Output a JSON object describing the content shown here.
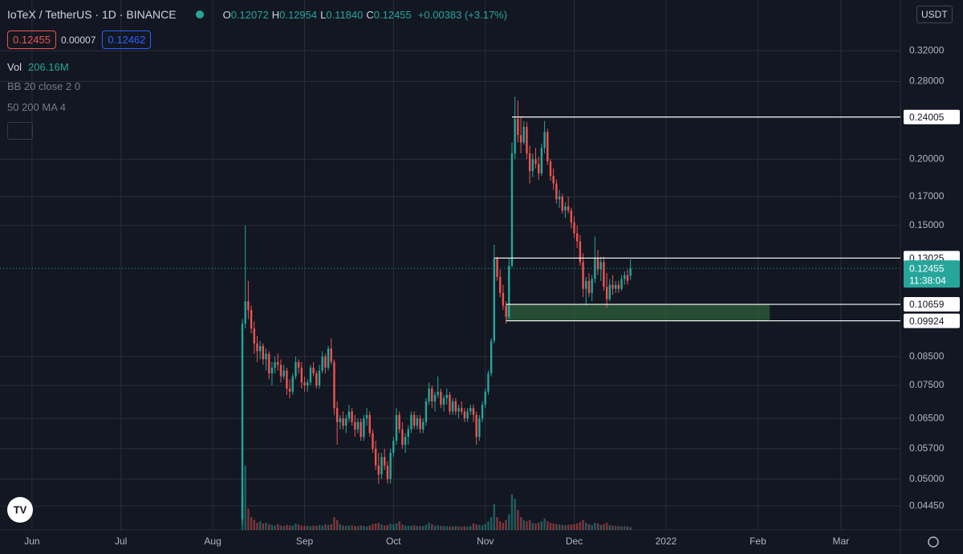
{
  "header": {
    "symbol": "IoTeX / TetherUS · 1D · BINANCE",
    "ohlc_prefixes": [
      "O",
      "H",
      "L",
      "C"
    ],
    "ohlc_values": [
      "0.12072",
      "0.12954",
      "0.11840",
      "0.12455"
    ],
    "change": "+0.00383 (+3.17%)",
    "sell": "0.12455",
    "spread": "0.00007",
    "buy": "0.12462",
    "volume_label": "Vol",
    "volume_value": "206.16M",
    "indicators": [
      "BB 20 close 2 0",
      "50 200 MA 4"
    ],
    "currency": "USDT",
    "countdown": "11:38:04"
  },
  "chart_data": {
    "type": "candlestick",
    "log_scale": true,
    "grid": true,
    "up_color": "#26a69a",
    "down_color": "#ef5350",
    "zone_color": "#2e5f3a",
    "xlim": [
      141.2,
      445.1
    ],
    "ylim": [
      0.0401,
      0.3986
    ],
    "xticks": [
      {
        "value": 152,
        "label": "Jun"
      },
      {
        "value": 182,
        "label": "Jul"
      },
      {
        "value": 213,
        "label": "Aug"
      },
      {
        "value": 244,
        "label": "Sep"
      },
      {
        "value": 274,
        "label": "Oct"
      },
      {
        "value": 305,
        "label": "Nov"
      },
      {
        "value": 335,
        "label": "Dec"
      },
      {
        "value": 366,
        "label": "2022"
      },
      {
        "value": 397,
        "label": "Feb"
      },
      {
        "value": 425,
        "label": "Mar"
      }
    ],
    "yticks": [
      {
        "value": 0.32,
        "label": "0.32000"
      },
      {
        "value": 0.28,
        "label": "0.28000"
      },
      {
        "value": 0.2,
        "label": "0.20000"
      },
      {
        "value": 0.17,
        "label": "0.17000"
      },
      {
        "value": 0.15,
        "label": "0.15000"
      },
      {
        "value": 0.085,
        "label": "0.08500"
      },
      {
        "value": 0.075,
        "label": "0.07500"
      },
      {
        "value": 0.065,
        "label": "0.06500"
      },
      {
        "value": 0.057,
        "label": "0.05700"
      },
      {
        "value": 0.05,
        "label": "0.05000"
      },
      {
        "value": 0.0445,
        "label": "0.04450"
      }
    ],
    "levels": [
      {
        "value": 0.24005,
        "from": 314
      },
      {
        "value": 0.13025,
        "from": 308
      },
      {
        "value": 0.10659,
        "from": 312
      },
      {
        "value": 0.09924,
        "from": 312
      }
    ],
    "zone": {
      "x0": 312,
      "x1": 401,
      "y0": 0.09924,
      "y1": 0.10659
    },
    "last_price": 0.12455,
    "x": [
      223,
      224,
      225,
      226,
      227,
      228,
      229,
      230,
      231,
      232,
      233,
      234,
      235,
      236,
      237,
      238,
      239,
      240,
      241,
      242,
      243,
      244,
      245,
      246,
      247,
      248,
      249,
      250,
      251,
      252,
      253,
      254,
      255,
      256,
      257,
      258,
      259,
      260,
      261,
      262,
      263,
      264,
      265,
      266,
      267,
      268,
      269,
      270,
      271,
      272,
      273,
      274,
      275,
      276,
      277,
      278,
      279,
      280,
      281,
      282,
      283,
      284,
      285,
      286,
      287,
      288,
      289,
      290,
      291,
      292,
      293,
      294,
      295,
      296,
      297,
      298,
      299,
      300,
      301,
      302,
      303,
      304,
      305,
      306,
      307,
      308,
      309,
      310,
      311,
      312,
      313,
      314,
      315,
      316,
      317,
      318,
      319,
      320,
      321,
      322,
      323,
      324,
      325,
      326,
      327,
      328,
      329,
      330,
      331,
      332,
      333,
      334,
      335,
      336,
      337,
      338,
      339,
      340,
      341,
      342,
      343,
      344,
      345,
      346,
      347,
      348,
      349,
      350,
      351,
      352,
      353,
      354
    ],
    "ohlc": [
      [
        0.042,
        0.1,
        0.041,
        0.098
      ],
      [
        0.098,
        0.15,
        0.096,
        0.108
      ],
      [
        0.108,
        0.118,
        0.1,
        0.104
      ],
      [
        0.104,
        0.106,
        0.094,
        0.096
      ],
      [
        0.096,
        0.099,
        0.086,
        0.09
      ],
      [
        0.09,
        0.093,
        0.083,
        0.087
      ],
      [
        0.087,
        0.091,
        0.084,
        0.089
      ],
      [
        0.089,
        0.09,
        0.082,
        0.084
      ],
      [
        0.084,
        0.088,
        0.08,
        0.086
      ],
      [
        0.086,
        0.087,
        0.077,
        0.079
      ],
      [
        0.079,
        0.083,
        0.075,
        0.081
      ],
      [
        0.081,
        0.085,
        0.079,
        0.083
      ],
      [
        0.083,
        0.086,
        0.08,
        0.082
      ],
      [
        0.082,
        0.084,
        0.076,
        0.078
      ],
      [
        0.078,
        0.082,
        0.077,
        0.08
      ],
      [
        0.08,
        0.081,
        0.072,
        0.074
      ],
      [
        0.074,
        0.077,
        0.071,
        0.073
      ],
      [
        0.073,
        0.079,
        0.072,
        0.078
      ],
      [
        0.078,
        0.085,
        0.077,
        0.083
      ],
      [
        0.083,
        0.084,
        0.079,
        0.081
      ],
      [
        0.081,
        0.083,
        0.074,
        0.076
      ],
      [
        0.076,
        0.078,
        0.073,
        0.075
      ],
      [
        0.075,
        0.077,
        0.073,
        0.076
      ],
      [
        0.076,
        0.082,
        0.075,
        0.081
      ],
      [
        0.081,
        0.083,
        0.078,
        0.079
      ],
      [
        0.079,
        0.08,
        0.074,
        0.075
      ],
      [
        0.075,
        0.082,
        0.074,
        0.08
      ],
      [
        0.08,
        0.087,
        0.079,
        0.085
      ],
      [
        0.085,
        0.086,
        0.079,
        0.081
      ],
      [
        0.081,
        0.089,
        0.08,
        0.088
      ],
      [
        0.088,
        0.092,
        0.082,
        0.083
      ],
      [
        0.083,
        0.084,
        0.066,
        0.068
      ],
      [
        0.068,
        0.07,
        0.058,
        0.064
      ],
      [
        0.064,
        0.066,
        0.062,
        0.065
      ],
      [
        0.065,
        0.067,
        0.062,
        0.063
      ],
      [
        0.063,
        0.066,
        0.061,
        0.065
      ],
      [
        0.065,
        0.069,
        0.064,
        0.067
      ],
      [
        0.067,
        0.068,
        0.063,
        0.064
      ],
      [
        0.064,
        0.066,
        0.06,
        0.062
      ],
      [
        0.062,
        0.065,
        0.061,
        0.064
      ],
      [
        0.064,
        0.065,
        0.059,
        0.06
      ],
      [
        0.06,
        0.066,
        0.059,
        0.065
      ],
      [
        0.065,
        0.068,
        0.063,
        0.066
      ],
      [
        0.066,
        0.067,
        0.06,
        0.061
      ],
      [
        0.061,
        0.062,
        0.056,
        0.057
      ],
      [
        0.057,
        0.059,
        0.052,
        0.053
      ],
      [
        0.053,
        0.056,
        0.049,
        0.051
      ],
      [
        0.051,
        0.056,
        0.05,
        0.055
      ],
      [
        0.055,
        0.057,
        0.052,
        0.053
      ],
      [
        0.053,
        0.054,
        0.049,
        0.05
      ],
      [
        0.05,
        0.057,
        0.049,
        0.056
      ],
      [
        0.056,
        0.06,
        0.055,
        0.059
      ],
      [
        0.059,
        0.068,
        0.058,
        0.066
      ],
      [
        0.066,
        0.067,
        0.061,
        0.062
      ],
      [
        0.062,
        0.064,
        0.057,
        0.058
      ],
      [
        0.058,
        0.061,
        0.056,
        0.06
      ],
      [
        0.06,
        0.063,
        0.058,
        0.062
      ],
      [
        0.062,
        0.067,
        0.061,
        0.066
      ],
      [
        0.066,
        0.067,
        0.062,
        0.063
      ],
      [
        0.063,
        0.066,
        0.062,
        0.065
      ],
      [
        0.065,
        0.066,
        0.061,
        0.062
      ],
      [
        0.062,
        0.065,
        0.061,
        0.064
      ],
      [
        0.064,
        0.071,
        0.063,
        0.07
      ],
      [
        0.07,
        0.076,
        0.069,
        0.074
      ],
      [
        0.074,
        0.075,
        0.068,
        0.07
      ],
      [
        0.07,
        0.073,
        0.067,
        0.072
      ],
      [
        0.072,
        0.078,
        0.071,
        0.073
      ],
      [
        0.073,
        0.074,
        0.068,
        0.069
      ],
      [
        0.069,
        0.072,
        0.067,
        0.071
      ],
      [
        0.071,
        0.074,
        0.069,
        0.072
      ],
      [
        0.072,
        0.073,
        0.066,
        0.067
      ],
      [
        0.067,
        0.071,
        0.066,
        0.07
      ],
      [
        0.07,
        0.071,
        0.066,
        0.067
      ],
      [
        0.067,
        0.069,
        0.065,
        0.068
      ],
      [
        0.068,
        0.07,
        0.066,
        0.067
      ],
      [
        0.067,
        0.068,
        0.064,
        0.065
      ],
      [
        0.065,
        0.068,
        0.064,
        0.067
      ],
      [
        0.067,
        0.069,
        0.066,
        0.068
      ],
      [
        0.068,
        0.069,
        0.064,
        0.066
      ],
      [
        0.066,
        0.067,
        0.058,
        0.06
      ],
      [
        0.06,
        0.066,
        0.059,
        0.065
      ],
      [
        0.065,
        0.07,
        0.064,
        0.069
      ],
      [
        0.069,
        0.074,
        0.068,
        0.073
      ],
      [
        0.073,
        0.08,
        0.072,
        0.079
      ],
      [
        0.079,
        0.092,
        0.078,
        0.091
      ],
      [
        0.091,
        0.138,
        0.09,
        0.13
      ],
      [
        0.13,
        0.131,
        0.118,
        0.12
      ],
      [
        0.12,
        0.124,
        0.11,
        0.112
      ],
      [
        0.112,
        0.116,
        0.104,
        0.106
      ],
      [
        0.106,
        0.108,
        0.098,
        0.101
      ],
      [
        0.101,
        0.13,
        0.1,
        0.126
      ],
      [
        0.126,
        0.215,
        0.125,
        0.205
      ],
      [
        0.205,
        0.262,
        0.2,
        0.238
      ],
      [
        0.238,
        0.258,
        0.215,
        0.222
      ],
      [
        0.222,
        0.24,
        0.205,
        0.215
      ],
      [
        0.215,
        0.236,
        0.213,
        0.23
      ],
      [
        0.23,
        0.235,
        0.2,
        0.205
      ],
      [
        0.205,
        0.212,
        0.18,
        0.19
      ],
      [
        0.19,
        0.205,
        0.185,
        0.2
      ],
      [
        0.2,
        0.21,
        0.192,
        0.196
      ],
      [
        0.196,
        0.202,
        0.183,
        0.188
      ],
      [
        0.188,
        0.214,
        0.186,
        0.21
      ],
      [
        0.21,
        0.236,
        0.205,
        0.225
      ],
      [
        0.225,
        0.228,
        0.195,
        0.198
      ],
      [
        0.198,
        0.2,
        0.182,
        0.186
      ],
      [
        0.186,
        0.192,
        0.175,
        0.18
      ],
      [
        0.18,
        0.183,
        0.165,
        0.168
      ],
      [
        0.168,
        0.175,
        0.162,
        0.17
      ],
      [
        0.17,
        0.172,
        0.158,
        0.16
      ],
      [
        0.16,
        0.166,
        0.155,
        0.163
      ],
      [
        0.163,
        0.17,
        0.158,
        0.16
      ],
      [
        0.16,
        0.162,
        0.148,
        0.152
      ],
      [
        0.152,
        0.156,
        0.142,
        0.145
      ],
      [
        0.145,
        0.15,
        0.136,
        0.14
      ],
      [
        0.14,
        0.144,
        0.126,
        0.128
      ],
      [
        0.128,
        0.133,
        0.11,
        0.114
      ],
      [
        0.114,
        0.12,
        0.106,
        0.118
      ],
      [
        0.118,
        0.122,
        0.11,
        0.112
      ],
      [
        0.112,
        0.121,
        0.108,
        0.119
      ],
      [
        0.119,
        0.143,
        0.117,
        0.13
      ],
      [
        0.13,
        0.135,
        0.121,
        0.124
      ],
      [
        0.124,
        0.131,
        0.118,
        0.128
      ],
      [
        0.128,
        0.131,
        0.113,
        0.115
      ],
      [
        0.115,
        0.122,
        0.105,
        0.109
      ],
      [
        0.109,
        0.119,
        0.108,
        0.116
      ],
      [
        0.116,
        0.121,
        0.111,
        0.114
      ],
      [
        0.114,
        0.118,
        0.112,
        0.116
      ],
      [
        0.116,
        0.118,
        0.112,
        0.114
      ],
      [
        0.114,
        0.121,
        0.113,
        0.119
      ],
      [
        0.119,
        0.123,
        0.116,
        0.121
      ],
      [
        0.121,
        0.124,
        0.116,
        0.118
      ],
      [
        0.12072,
        0.12954,
        0.1184,
        0.12455
      ]
    ],
    "volume": [
      2600,
      4500,
      1500,
      900,
      700,
      500,
      600,
      450,
      500,
      400,
      350,
      300,
      400,
      300,
      280,
      350,
      300,
      320,
      450,
      380,
      300,
      280,
      300,
      260,
      300,
      280,
      350,
      300,
      380,
      350,
      400,
      900,
      700,
      400,
      300,
      280,
      300,
      320,
      280,
      260,
      300,
      280,
      250,
      300,
      400,
      450,
      500,
      380,
      300,
      350,
      420,
      400,
      450,
      600,
      380,
      300,
      280,
      300,
      320,
      280,
      260,
      270,
      350,
      500,
      400,
      300,
      320,
      280,
      260,
      250,
      240,
      260,
      270,
      250,
      230,
      260,
      240,
      280,
      450,
      380,
      350,
      320,
      420,
      600,
      900,
      1800,
      900,
      600,
      500,
      700,
      1100,
      2500,
      2200,
      1400,
      900,
      700,
      600,
      700,
      500,
      450,
      500,
      600,
      800,
      600,
      500,
      450,
      400,
      380,
      350,
      330,
      350,
      380,
      400,
      450,
      550,
      700,
      500,
      400,
      350,
      500,
      450,
      350,
      400,
      500,
      350,
      300,
      280,
      260,
      250,
      270,
      240,
      206.16
    ]
  }
}
